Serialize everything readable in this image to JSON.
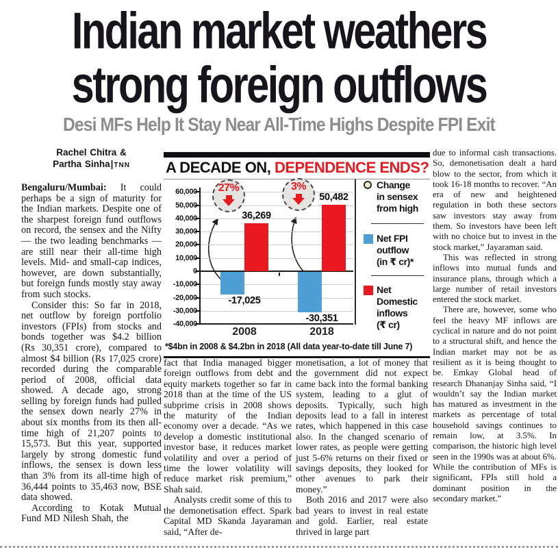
{
  "headline": {
    "line1": "Indian market weathers",
    "line2": "strong foreign outflows"
  },
  "subheadline": "Desi MFs Help It Stay Near All-Time Highs Despite FPI Exit",
  "byline": {
    "line1": "Rachel Chitra &",
    "line2": "Partha Sinha",
    "agency": "TNN"
  },
  "article": {
    "col1": {
      "dateline": "Bengaluru/Mumbai:",
      "p1": "It could perhaps be a sign of maturity for the Indian markets. Despite one of the sharpest foreign fund outflows on record, the sensex and the Nifty — the two leading benchmarks — are still near their all-time high levels. Mid- and small-cap indices, however, are down substantially, but foreign funds mostly stay away from such stocks.",
      "p2": "Consider this: So far in 2018, net outflow by foreign portfolio investors (FPIs) from stocks and bonds together was $4.2 billion (Rs 30,351 crore), compared to almost $4 billion (Rs 17,025 crore) recorded during the comparable period of 2008, official data showed. A decade ago, strong selling by foreign funds had pulled the sensex down nearly 27% in about six months from its then all-time high of 21,207 points to 15,573. But this year, supported largely by strong domestic fund inflows, the sensex is down less than 3% from its all-time high of 36,444 points to 35,463 now, BSE data showed.",
      "p3": "According to Kotak Mutual Fund MD Nilesh Shah, the"
    },
    "col2": {
      "p1": "fact that India managed bigger foreign outflows from debt and equity markets together so far in 2018 than at the time of the US subprime crisis in 2008 shows the maturity of the Indian economy over a decade. “As we develop a domestic institutional investor base, it reduces market volatility and over a period of time the lower volatility will reduce market risk premium,” Shah said.",
      "p2": "Analysts credit some of this to the demonetisation effect. Spark Capital MD Skanda Jayaraman said, “After de-"
    },
    "col3": {
      "p1": "monetisation, a lot of money that the government did not expect came back into the formal banking system, leading to a glut of deposits. Typically, such high deposits lead to a fall in interest rates, which happened in this case also. In the changed scenario of lower rates, as people were getting just 5-6% returns on their fixed or savings deposits, they looked for other avenues to park their money.”",
      "p2": "Both 2016 and 2017 were also bad years to invest in real estate and gold. Earlier, real estate thrived in large part"
    },
    "col4": {
      "p1": "due to informal cash transactions. So, demonetisation dealt a hard blow to the sector, from which it took 16-18 months to recover. “An era of new and heightened regulation in both these sectors saw investors stay away from them. So investors have been left with no choice but to invest in the stock market,” Jayaraman said.",
      "p2": "This was reflected in strong inflows into mutual funds and insurance plans, through which a large number of retail investors entered the stock market.",
      "p3": "There are, however, some who feel the heavy MF inflows are cyclical in nature and do not point to a structural shift, and hence the Indian market may not be as resilient as it is being thought to be. Emkay Global head of research Dhananjay Sinha said, “I wouldn’t say the Indian market has matured as investment in the markets as percentage of total household savings continues to remain low, at 3.5%. In comparison, the historic high level seen in the 1990s was at about 6%. While the contribution of MFs is significant, FPIs still hold a dominant position in the secondary market.”"
    }
  },
  "chart": {
    "title_black": "A DECADE ON,",
    "title_red": "DEPENDENCE ENDS?",
    "footnote": "*$4bn in 2008 & $4.2bn in 2018 (All data year-to-date till June 7)",
    "colors": {
      "accent_red": "#e8191f",
      "fpi_blue": "#4e9fd6",
      "circle_cream": "#f4efcf",
      "annotation_gray": "#e6e4e1"
    },
    "legend": [
      {
        "marker": "circle",
        "color": "#f4efcf",
        "lines": [
          "Change",
          "in sensex",
          "from high"
        ]
      },
      {
        "marker": "square",
        "color": "#4e9fd6",
        "lines": [
          "Net FPI",
          "outflow",
          "(in ₹ cr)*"
        ]
      },
      {
        "marker": "square",
        "color": "#e8191f",
        "lines": [
          "Net",
          "Domestic",
          "inflows",
          "(₹ cr)"
        ]
      }
    ]
  },
  "chart_data": {
    "type": "bar",
    "title": "A DECADE ON, DEPENDENCE ENDS?",
    "categories": [
      "2008",
      "2018"
    ],
    "series": [
      {
        "name": "Net FPI outflow (in ₹ cr)",
        "color": "#4e9fd6",
        "values": [
          -17025,
          -30351
        ]
      },
      {
        "name": "Net Domestic inflows (₹ cr)",
        "color": "#e8191f",
        "values": [
          36269,
          50482
        ]
      }
    ],
    "annotations": [
      {
        "category": "2008",
        "label": "27%",
        "meaning": "Change in sensex from high"
      },
      {
        "category": "2018",
        "label": "3%",
        "meaning": "Change in sensex from high"
      }
    ],
    "ylim": [
      -40000,
      60000
    ],
    "ytick_step": 10000,
    "grid": true,
    "legend_position": "right",
    "footnote": "*$4bn in 2008 & $4.2bn in 2018 (All data year-to-date till June 7)"
  }
}
